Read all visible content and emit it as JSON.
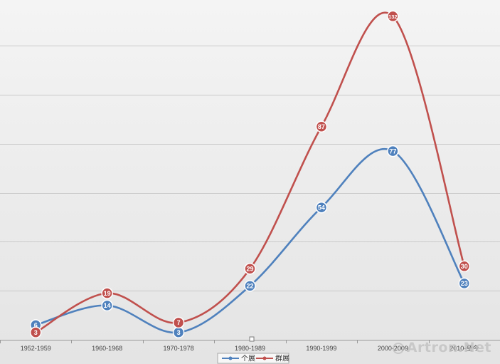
{
  "chart_data": {
    "type": "line",
    "categories": [
      "1952-1959",
      "1960-1968",
      "1970-1978",
      "1980-1989",
      "1990-1999",
      "2000-2009",
      "2010-至今"
    ],
    "series": [
      {
        "name": "个展",
        "color": "#4f81bd",
        "values": [
          6,
          14,
          3,
          22,
          54,
          77,
          23
        ]
      },
      {
        "name": "群展",
        "color": "#c0504d",
        "values": [
          3,
          19,
          7,
          29,
          87,
          132,
          30
        ]
      }
    ],
    "ylim": [
      0,
      140
    ],
    "grid": true,
    "smooth": true,
    "data_labels": true,
    "legend_position": "bottom"
  },
  "watermark": {
    "text": "Artron.Net"
  },
  "colors": {
    "background_from": "#f4f4f4",
    "background_to": "#e4e4e4",
    "gridline": "#c9c9c9",
    "axis": "#9a9a9a"
  }
}
